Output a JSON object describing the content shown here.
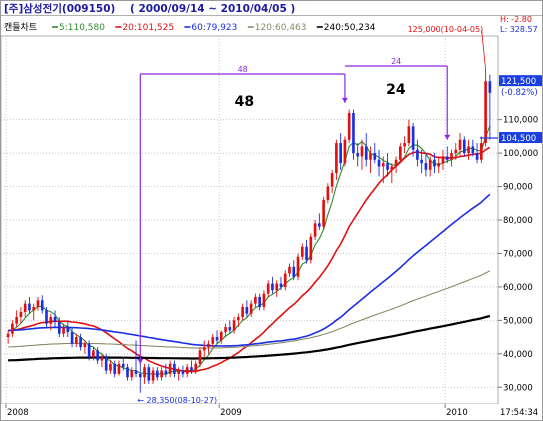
{
  "header": {
    "title": "[주]삼성전기(009150)",
    "date_range": "( 2000/09/14 ~ 2010/04/05 )",
    "hilo_h": "H: -2.80",
    "hilo_l": "L: 328.57"
  },
  "chart_data": {
    "type": "candlestick",
    "chart_label": "캔들차트",
    "moving_averages": [
      {
        "name": "5:110,580",
        "period": 5,
        "color": "#2e8b2e"
      },
      {
        "name": "20:101,525",
        "period": 20,
        "color": "#e01010"
      },
      {
        "name": "60:79,923",
        "period": 60,
        "color": "#1a2fe0"
      },
      {
        "name": "120:60,463",
        "period": 120,
        "color": "#8a8a6a"
      },
      {
        "name": "240:50,234",
        "period": 240,
        "color": "#000000"
      }
    ],
    "y_axis": {
      "ylim": [
        25000,
        135000
      ],
      "ticks": [
        "110,000",
        "100,000",
        "90,000",
        "80,000",
        "70,000",
        "60,000",
        "50,000",
        "40,000",
        "30,000"
      ],
      "tick_values": [
        110000,
        100000,
        90000,
        80000,
        70000,
        60000,
        50000,
        40000,
        30000
      ]
    },
    "x_axis": {
      "tick_labels": [
        "2008",
        "2009",
        "2010"
      ],
      "tick_weeks": [
        0,
        50,
        103
      ],
      "total_weeks": 118,
      "time_label": "17:54:34"
    },
    "candles": [
      [
        45000,
        47000,
        43000,
        46000
      ],
      [
        46000,
        50000,
        45000,
        49000
      ],
      [
        49000,
        53000,
        48000,
        51000
      ],
      [
        51000,
        54000,
        49000,
        52500
      ],
      [
        52500,
        56000,
        51000,
        55000
      ],
      [
        55000,
        57000,
        52000,
        53000
      ],
      [
        53000,
        55000,
        50000,
        54000
      ],
      [
        54000,
        57000,
        53000,
        56000
      ],
      [
        56000,
        57500,
        52000,
        53000
      ],
      [
        53000,
        54000,
        48000,
        49000
      ],
      [
        49000,
        52000,
        47000,
        51000
      ],
      [
        51000,
        53000,
        48000,
        49500
      ],
      [
        49500,
        51000,
        45000,
        46000
      ],
      [
        46000,
        49000,
        45000,
        48000
      ],
      [
        48000,
        50000,
        45000,
        46500
      ],
      [
        46500,
        48000,
        42000,
        43000
      ],
      [
        43000,
        46000,
        42000,
        45000
      ],
      [
        45000,
        46000,
        41000,
        42000
      ],
      [
        42000,
        44000,
        40000,
        43000
      ],
      [
        43000,
        44000,
        38000,
        39000
      ],
      [
        39000,
        42000,
        38000,
        41000
      ],
      [
        41000,
        42000,
        37000,
        38000
      ],
      [
        38000,
        40000,
        36000,
        39000
      ],
      [
        39000,
        40000,
        34000,
        35000
      ],
      [
        35000,
        38000,
        34000,
        37000
      ],
      [
        37000,
        38000,
        33000,
        34000
      ],
      [
        34000,
        38000,
        33500,
        37000
      ],
      [
        37000,
        39000,
        35000,
        36000
      ],
      [
        36000,
        37000,
        32000,
        33000
      ],
      [
        33000,
        36000,
        32000,
        35000
      ],
      [
        35000,
        44000,
        33000,
        34000
      ],
      [
        34000,
        38000,
        28350,
        33000
      ],
      [
        33000,
        37000,
        31000,
        36000
      ],
      [
        36000,
        37000,
        31000,
        32000
      ],
      [
        32000,
        36000,
        31000,
        35000
      ],
      [
        35000,
        36000,
        32000,
        33000
      ],
      [
        33000,
        36000,
        32000,
        35000
      ],
      [
        35000,
        37000,
        33000,
        34000
      ],
      [
        34000,
        38000,
        33000,
        37000
      ],
      [
        37000,
        38000,
        33000,
        34000
      ],
      [
        34000,
        36000,
        32000,
        35000
      ],
      [
        35000,
        36500,
        33000,
        34000
      ],
      [
        34000,
        37000,
        33000,
        36000
      ],
      [
        36000,
        38000,
        34000,
        35000
      ],
      [
        35000,
        38000,
        34000,
        37000
      ],
      [
        37000,
        42000,
        36000,
        41000
      ],
      [
        41000,
        44000,
        39000,
        42000
      ],
      [
        42000,
        44000,
        40000,
        43000
      ],
      [
        43000,
        46000,
        42000,
        45000
      ],
      [
        45000,
        47000,
        43000,
        44000
      ],
      [
        44000,
        47000,
        43000,
        46500
      ],
      [
        46500,
        49000,
        45000,
        48000
      ],
      [
        48000,
        50000,
        46000,
        47000
      ],
      [
        47000,
        51000,
        46000,
        50000
      ],
      [
        50000,
        52000,
        48000,
        51000
      ],
      [
        51000,
        55000,
        50000,
        54000
      ],
      [
        54000,
        56000,
        51000,
        52000
      ],
      [
        52000,
        56000,
        51000,
        55000
      ],
      [
        55000,
        58000,
        54000,
        57000
      ],
      [
        57000,
        58000,
        53000,
        54000
      ],
      [
        54000,
        59000,
        53000,
        58000
      ],
      [
        58000,
        62000,
        57000,
        61000
      ],
      [
        61000,
        63000,
        58000,
        59000
      ],
      [
        59000,
        62000,
        57000,
        61000
      ],
      [
        61000,
        63000,
        59000,
        60000
      ],
      [
        60000,
        65000,
        59000,
        64000
      ],
      [
        64000,
        67000,
        63000,
        66000
      ],
      [
        66000,
        68000,
        62000,
        63000
      ],
      [
        63000,
        70000,
        62000,
        69000
      ],
      [
        69000,
        73000,
        68000,
        72000
      ],
      [
        72000,
        74000,
        67000,
        68000
      ],
      [
        68000,
        76000,
        67000,
        75000
      ],
      [
        75000,
        80000,
        74000,
        79000
      ],
      [
        79000,
        82000,
        77000,
        78000
      ],
      [
        78000,
        87000,
        77000,
        86000
      ],
      [
        86000,
        91000,
        85000,
        90000
      ],
      [
        90000,
        95000,
        88000,
        94000
      ],
      [
        94000,
        104000,
        92000,
        103000
      ],
      [
        103000,
        106000,
        95000,
        97000
      ],
      [
        97000,
        105000,
        96000,
        104000
      ],
      [
        104000,
        113000,
        103000,
        112000
      ],
      [
        112000,
        113000,
        98000,
        100000
      ],
      [
        100000,
        103000,
        96000,
        99000
      ],
      [
        99000,
        104000,
        95000,
        102000
      ],
      [
        102000,
        106000,
        96000,
        98000
      ],
      [
        98000,
        102000,
        94000,
        100000
      ],
      [
        100000,
        103000,
        97000,
        98000
      ],
      [
        98000,
        101000,
        93000,
        96000
      ],
      [
        96000,
        99000,
        91000,
        97000
      ],
      [
        97000,
        100000,
        93000,
        95000
      ],
      [
        95000,
        97000,
        91000,
        96000
      ],
      [
        96000,
        99000,
        94000,
        98000
      ],
      [
        98000,
        103000,
        97000,
        102000
      ],
      [
        102000,
        105000,
        100000,
        103000
      ],
      [
        103000,
        110000,
        102000,
        108000
      ],
      [
        108000,
        109000,
        99000,
        101000
      ],
      [
        101000,
        104000,
        96000,
        98000
      ],
      [
        98000,
        101000,
        94000,
        97000
      ],
      [
        97000,
        100000,
        93000,
        95000
      ],
      [
        95000,
        99000,
        93000,
        98000
      ],
      [
        98000,
        100000,
        94000,
        96000
      ],
      [
        96000,
        99000,
        94000,
        97000
      ],
      [
        97000,
        101000,
        95000,
        99000
      ],
      [
        99000,
        102000,
        97000,
        98000
      ],
      [
        98000,
        101000,
        96000,
        100000
      ],
      [
        100000,
        103000,
        98000,
        101000
      ],
      [
        101000,
        106000,
        99000,
        104000
      ],
      [
        104000,
        105000,
        99000,
        100000
      ],
      [
        100000,
        104000,
        98000,
        102000
      ],
      [
        102000,
        104000,
        99000,
        100000
      ],
      [
        100000,
        103000,
        97000,
        98000
      ],
      [
        98000,
        105000,
        97000,
        103000
      ],
      [
        103000,
        125000,
        102000,
        121500
      ],
      [
        121500,
        123500,
        104000,
        118000
      ]
    ],
    "annotations": {
      "max_label": "125,000(10-04-05)",
      "min_label": "← 28,350(08-10-27)",
      "period_1_label": "48",
      "period_1_big": "48",
      "period_2_label": "24",
      "period_2_big": "24",
      "period_1_from_week": 31,
      "period_1_to_week": 79,
      "period_2_from_week": 79,
      "period_2_to_week": 103
    },
    "price_tags": [
      {
        "value": 121500,
        "label": "121,500",
        "sub": "(-0.82%)",
        "color": "#1a3fe0"
      },
      {
        "value": 104500,
        "label": "104,500",
        "color": "#1a3fe0"
      }
    ],
    "arrow_color": "#8a2be2",
    "up_color": "#e01010",
    "down_color": "#1a2fe0"
  }
}
